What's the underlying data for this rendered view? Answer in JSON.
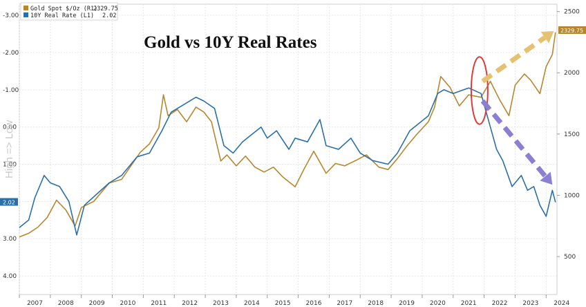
{
  "chart_data": {
    "type": "line",
    "title": "Gold vs 10Y Real Rates",
    "side_label": "High => Low",
    "legend": [
      {
        "name": "Gold Spot $/Oz (R1)",
        "value": "2329.75"
      },
      {
        "name": "10Y Real Rate (L1)",
        "value": "2.02"
      }
    ],
    "x_ticks": [
      "2007",
      "2008",
      "2009",
      "2010",
      "2011",
      "2012",
      "2013",
      "2014",
      "2015",
      "2016",
      "2017",
      "2018",
      "2019",
      "2020",
      "2021",
      "2022",
      "2023",
      "2024"
    ],
    "xlim": [
      2007.0,
      2024.35
    ],
    "y_left": {
      "ticks": [
        "-3.00",
        "-2.00",
        "-1.00",
        "0.00",
        "1.00",
        "2.00",
        "3.00",
        "4.00"
      ],
      "values": [
        -3,
        -2,
        -1,
        0,
        1,
        2,
        3,
        4
      ],
      "ylim": [
        -3.3,
        4.5
      ],
      "inverted": true
    },
    "y_right": {
      "ticks": [
        "2500",
        "2000",
        "1500",
        "1000",
        "500"
      ],
      "values": [
        2500,
        2000,
        1500,
        1000,
        500
      ],
      "ylim": [
        190,
        2560
      ]
    },
    "last_value_tags": {
      "left": "2.02",
      "right": "2329.75"
    },
    "colors": {
      "gold": "#b8862e",
      "real_rate": "#2a6fa8",
      "tag_gold": "#b8862e",
      "tag_rate": "#2a6fa8",
      "arrow_gold": "#e6c172",
      "arrow_rate": "#8a7fd3",
      "ellipse": "#e03a3a"
    },
    "series": [
      {
        "name": "Gold Spot $/Oz (R1)",
        "axis": "right",
        "x": [
          2007.0,
          2007.3,
          2007.6,
          2007.9,
          2008.2,
          2008.5,
          2008.8,
          2009.0,
          2009.4,
          2009.9,
          2010.3,
          2010.9,
          2011.2,
          2011.5,
          2011.65,
          2011.8,
          2012.1,
          2012.4,
          2012.7,
          2012.95,
          2013.2,
          2013.5,
          2013.7,
          2014.0,
          2014.3,
          2014.6,
          2014.9,
          2015.2,
          2015.5,
          2015.9,
          2016.2,
          2016.5,
          2016.9,
          2017.2,
          2017.5,
          2017.9,
          2018.2,
          2018.6,
          2018.9,
          2019.2,
          2019.5,
          2019.8,
          2020.2,
          2020.4,
          2020.6,
          2020.9,
          2021.2,
          2021.5,
          2021.9,
          2022.2,
          2022.5,
          2022.8,
          2023.0,
          2023.3,
          2023.5,
          2023.8,
          2024.0,
          2024.2,
          2024.3
        ],
        "values": [
          660,
          690,
          740,
          820,
          960,
          880,
          750,
          900,
          950,
          1100,
          1130,
          1350,
          1420,
          1550,
          1820,
          1650,
          1700,
          1600,
          1720,
          1680,
          1600,
          1280,
          1330,
          1240,
          1320,
          1230,
          1190,
          1230,
          1150,
          1070,
          1220,
          1360,
          1180,
          1260,
          1240,
          1290,
          1330,
          1230,
          1210,
          1300,
          1400,
          1490,
          1600,
          1720,
          1970,
          1880,
          1730,
          1820,
          1800,
          1930,
          1780,
          1650,
          1900,
          1990,
          1940,
          1830,
          2050,
          2150,
          2330
        ]
      },
      {
        "name": "10Y Real Rate (L1)",
        "axis": "left",
        "x": [
          2007.0,
          2007.3,
          2007.5,
          2007.8,
          2008.0,
          2008.3,
          2008.6,
          2008.85,
          2009.1,
          2009.5,
          2009.9,
          2010.3,
          2010.8,
          2011.2,
          2011.6,
          2011.9,
          2012.3,
          2012.7,
          2012.95,
          2013.3,
          2013.6,
          2013.9,
          2014.2,
          2014.5,
          2014.8,
          2015.0,
          2015.3,
          2015.7,
          2015.9,
          2016.3,
          2016.7,
          2016.9,
          2017.3,
          2017.7,
          2018.0,
          2018.4,
          2018.9,
          2019.2,
          2019.6,
          2019.9,
          2020.2,
          2020.5,
          2020.7,
          2021.0,
          2021.5,
          2021.9,
          2022.2,
          2022.4,
          2022.6,
          2022.9,
          2023.2,
          2023.4,
          2023.6,
          2023.8,
          2024.0,
          2024.2,
          2024.3
        ],
        "values": [
          2.7,
          2.5,
          1.9,
          1.3,
          1.5,
          1.6,
          2.0,
          2.9,
          2.1,
          1.8,
          1.5,
          1.3,
          0.8,
          0.7,
          0.1,
          -0.4,
          -0.6,
          -0.8,
          -0.7,
          -0.5,
          0.5,
          0.7,
          0.4,
          0.2,
          0.0,
          0.3,
          0.1,
          0.6,
          0.3,
          0.4,
          -0.2,
          0.5,
          0.6,
          0.3,
          0.7,
          0.9,
          1.0,
          0.7,
          0.1,
          -0.1,
          -0.3,
          -0.9,
          -1.0,
          -0.9,
          -1.05,
          -0.9,
          0.0,
          0.6,
          0.9,
          1.6,
          1.3,
          1.7,
          1.6,
          2.1,
          2.4,
          1.7,
          2.02
        ]
      }
    ]
  }
}
